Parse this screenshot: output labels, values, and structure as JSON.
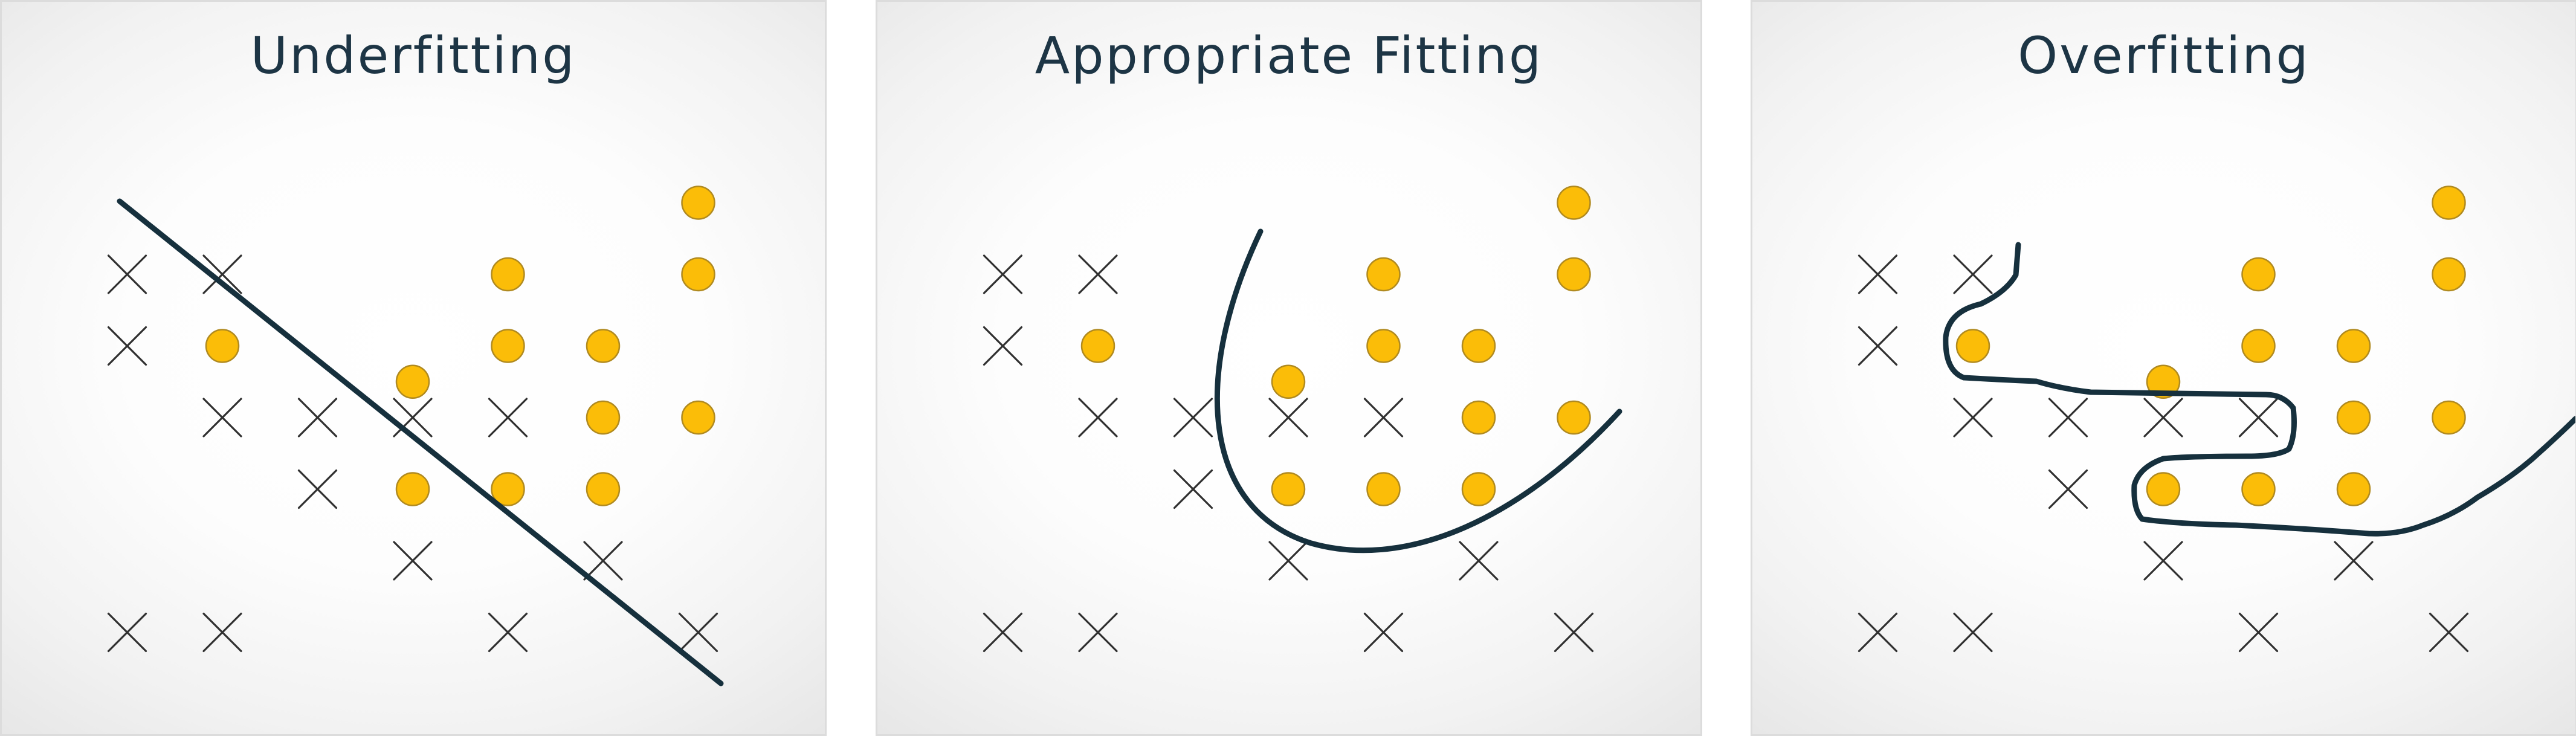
{
  "panels": [
    {
      "id": "underfitting",
      "title": "Underfitting",
      "boundary": "linear"
    },
    {
      "id": "appropriate-fitting",
      "title": "Appropriate Fitting",
      "boundary": "smooth-curve"
    },
    {
      "id": "overfitting",
      "title": "Overfitting",
      "boundary": "wiggly-curve"
    }
  ],
  "samples": {
    "crosses": [
      [
        1,
        6
      ],
      [
        2,
        6
      ],
      [
        1,
        5
      ],
      [
        2,
        4
      ],
      [
        3,
        4
      ],
      [
        4,
        4
      ],
      [
        5,
        4
      ],
      [
        3,
        3
      ],
      [
        4,
        2
      ],
      [
        6,
        2
      ],
      [
        1,
        1
      ],
      [
        2,
        1
      ],
      [
        5,
        1
      ],
      [
        7,
        1
      ]
    ],
    "circles": [
      [
        7,
        7
      ],
      [
        5,
        6
      ],
      [
        7,
        6
      ],
      [
        2,
        5
      ],
      [
        5,
        5
      ],
      [
        6,
        5
      ],
      [
        4,
        4.5
      ],
      [
        6,
        4
      ],
      [
        7,
        4
      ],
      [
        4,
        3
      ],
      [
        5,
        3
      ],
      [
        6,
        3
      ]
    ]
  },
  "colors": {
    "circle_fill": "#fbbd08",
    "circle_stroke": "#b08a20",
    "cross": "#303030",
    "boundary": "#16303d",
    "title": "#1d3545",
    "panel_border": "#dcdcdc"
  },
  "icons": {
    "positive_sample": "filled-circle",
    "negative_sample": "x-cross"
  }
}
